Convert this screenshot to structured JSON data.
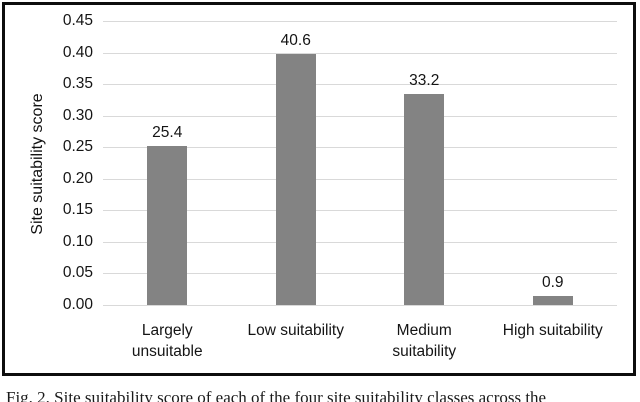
{
  "caption": "Fig. 2. Site suitability score of each of the four site suitability classes across the",
  "colors": {
    "bar": "#838383",
    "gridline": "#d9d9d9",
    "text": "#141414",
    "frame_border": "#0d0d0d",
    "background": "#ffffff"
  },
  "chart_data": {
    "type": "bar",
    "title": "",
    "xlabel": "",
    "ylabel": "Site suitability score",
    "categories": [
      "Largely unsuitable",
      "Low suitability",
      "Medium suitability",
      "High suitability"
    ],
    "category_display_lines": [
      [
        "Largely",
        "unsuitable"
      ],
      [
        "Low suitability"
      ],
      [
        "Medium",
        "suitability"
      ],
      [
        "High suitability"
      ]
    ],
    "values": [
      25.4,
      40.6,
      33.2,
      0.9
    ],
    "value_labels": [
      "25.4",
      "40.6",
      "33.2",
      "0.9"
    ],
    "bar_heights_axis_units": [
      0.252,
      0.398,
      0.335,
      0.015
    ],
    "ylim": [
      0,
      0.45
    ],
    "ytick_labels": [
      "0.45",
      "0.40",
      "0.35",
      "0.30",
      "0.25",
      "0.20",
      "0.15",
      "0.10",
      "0.05",
      "0.00"
    ],
    "grid": true,
    "legend": false
  }
}
